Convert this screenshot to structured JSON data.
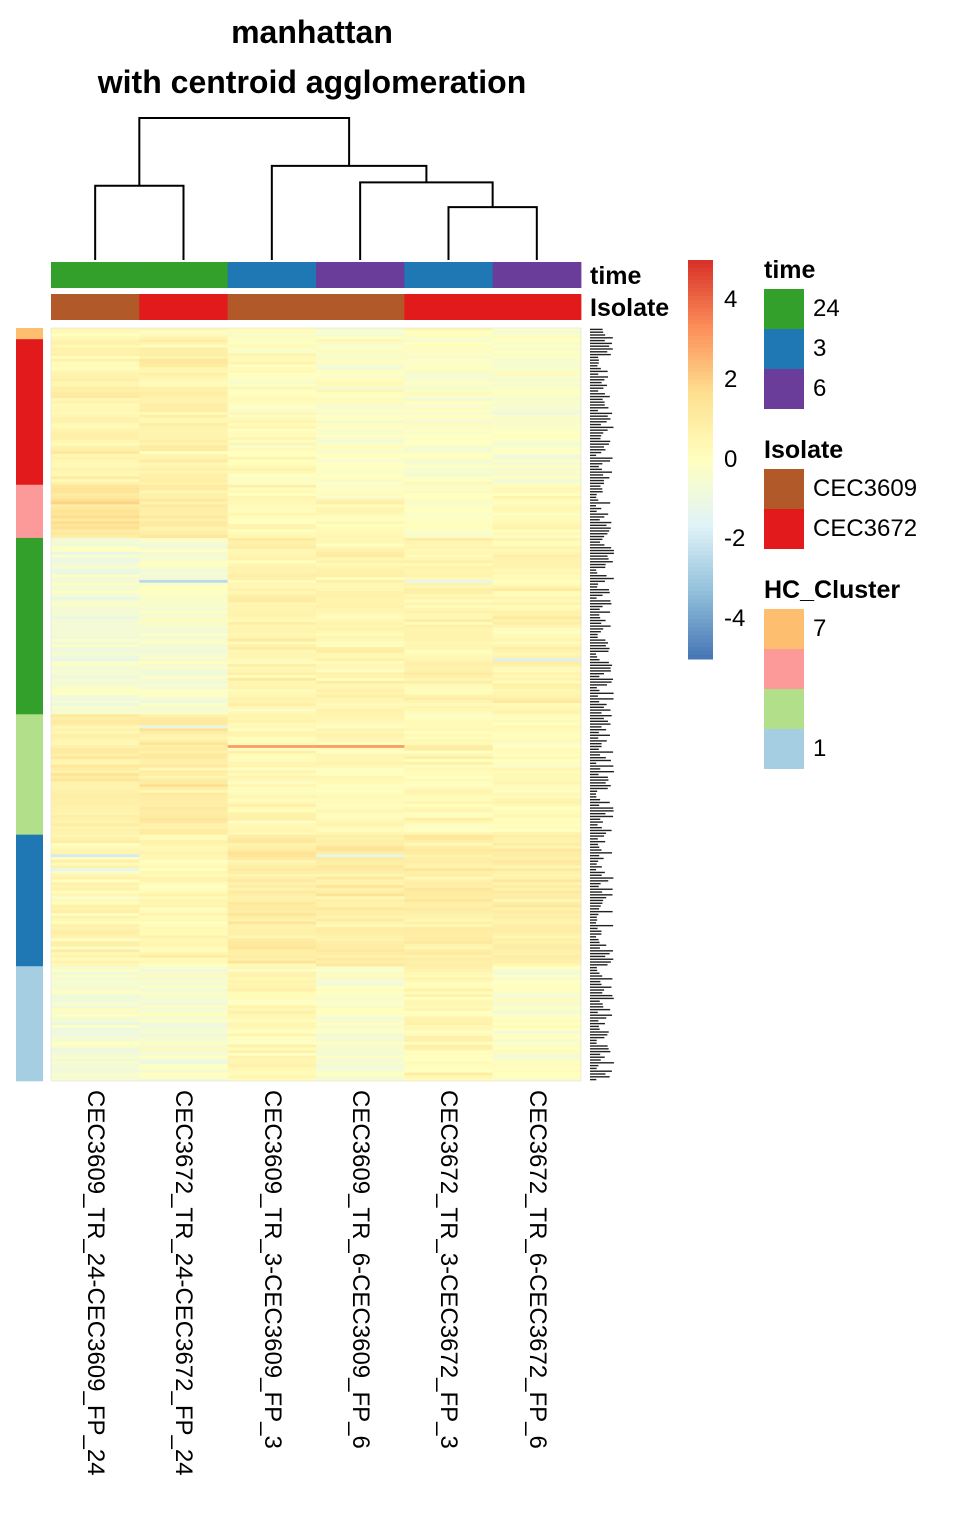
{
  "chart_data": {
    "type": "heatmap",
    "title": "manhattan",
    "subtitle": "with centroid agglomeration",
    "columns": [
      "CEC3609_TR_24-CEC3609_FP_24",
      "CEC3672_TR_24-CEC3672_FP_24",
      "CEC3609_TR_3-CEC3609_FP_3",
      "CEC3609_TR_6-CEC3609_FP_6",
      "CEC3672_TR_3-CEC3672_FP_3",
      "CEC3672_TR_6-CEC3672_FP_6"
    ],
    "column_annotations": {
      "time": [
        "24",
        "24",
        "3",
        "6",
        "3",
        "6"
      ],
      "Isolate": [
        "CEC3609",
        "CEC3672",
        "CEC3609",
        "CEC3609",
        "CEC3672",
        "CEC3672"
      ]
    },
    "annotation_row_labels": [
      "time",
      "Isolate"
    ],
    "row_clusters": [
      {
        "cluster": "7",
        "color": "#FDBF6F",
        "rows": 4
      },
      {
        "cluster": "6",
        "color": "#E31A1C",
        "rows": 52
      },
      {
        "cluster": "5",
        "color": "#FB9A99",
        "rows": 19
      },
      {
        "cluster": "4",
        "color": "#33A02C",
        "rows": 63
      },
      {
        "cluster": "3",
        "color": "#B2DF8A",
        "rows": 43
      },
      {
        "cluster": "2",
        "color": "#1F78B4",
        "rows": 47
      },
      {
        "cluster": "1",
        "color": "#A6CEE3",
        "rows": 41
      }
    ],
    "cluster_means": [
      [
        0.2,
        0.3,
        0.0,
        -0.3,
        -0.1,
        -0.2
      ],
      [
        0.6,
        0.7,
        0.1,
        -0.2,
        -0.3,
        -0.3
      ],
      [
        1.3,
        1.0,
        0.3,
        0.3,
        -0.1,
        0.2
      ],
      [
        -0.6,
        -0.5,
        0.6,
        0.5,
        0.5,
        0.5
      ],
      [
        0.9,
        0.9,
        0.3,
        0.3,
        0.3,
        0.2
      ],
      [
        0.4,
        0.3,
        0.9,
        0.9,
        0.8,
        0.9
      ],
      [
        -0.5,
        -0.4,
        0.4,
        -0.3,
        0.3,
        -0.2
      ]
    ],
    "color_scale": {
      "min": -5,
      "max": 5,
      "ticks": [
        -4,
        -2,
        0,
        2,
        4
      ],
      "colors": [
        "#4575B4",
        "#91BFDB",
        "#E0F3F8",
        "#FFFFBF",
        "#FEE090",
        "#FC8D59",
        "#D73027"
      ]
    },
    "dendrogram": {
      "merges": [
        [
          1,
          2
        ],
        [
          5,
          6
        ],
        [
          4,
          8
        ],
        [
          3,
          9
        ],
        [
          7,
          10
        ]
      ],
      "heights": [
        0.45,
        0.32,
        0.47,
        0.57,
        0.86
      ]
    }
  },
  "legend": {
    "time": {
      "title": "time",
      "entries": [
        {
          "label": "24",
          "color": "#33A02C"
        },
        {
          "label": "3",
          "color": "#1F78B4"
        },
        {
          "label": "6",
          "color": "#6A3D9A"
        }
      ]
    },
    "isolate": {
      "title": "Isolate",
      "entries": [
        {
          "label": "CEC3609",
          "color": "#B15928"
        },
        {
          "label": "CEC3672",
          "color": "#E31A1C"
        }
      ]
    },
    "hc_cluster": {
      "title": "HC_Cluster",
      "entries": [
        {
          "label": "7",
          "color": "#FDBF6F"
        },
        {
          "label": "",
          "color": "#FB9A99"
        },
        {
          "label": "",
          "color": "#B2DF8A"
        },
        {
          "label": "1",
          "color": "#A6CEE3"
        }
      ]
    }
  }
}
